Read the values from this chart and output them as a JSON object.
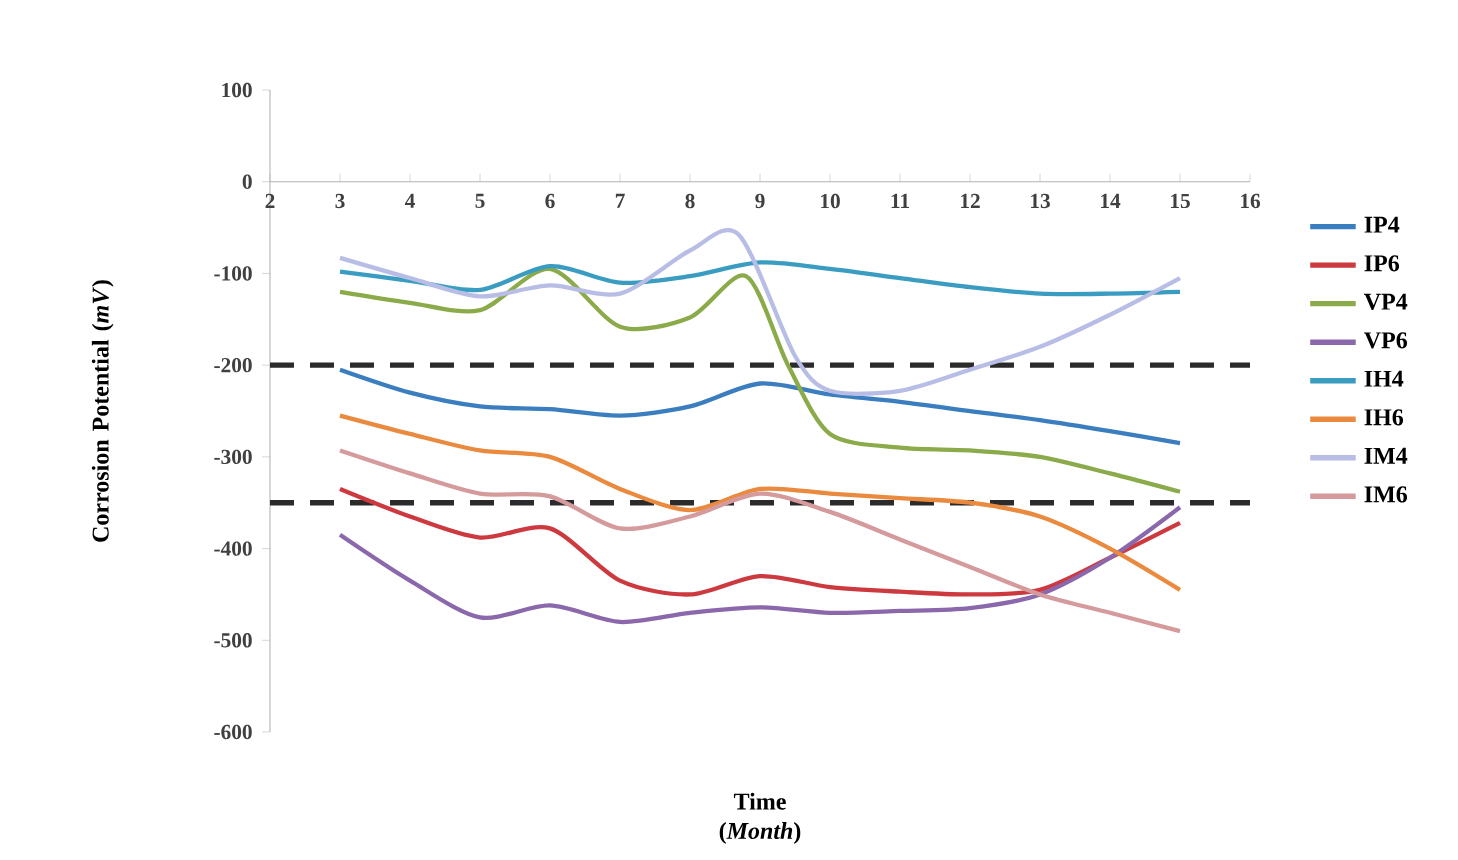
{
  "chart_data": {
    "type": "line",
    "xlabel": "Time (*Month*)",
    "ylabel": "Corrosion Potential (*mV*)",
    "xlim": [
      2,
      16
    ],
    "ylim": [
      -600,
      100
    ],
    "xticks": [
      2,
      3,
      4,
      5,
      6,
      7,
      8,
      9,
      10,
      11,
      12,
      13,
      14,
      15,
      16
    ],
    "yticks": [
      -600,
      -500,
      -400,
      -300,
      -200,
      -100,
      0,
      100
    ],
    "legend": "right",
    "marker": "none",
    "line_style": "solid",
    "ref_lines": [
      {
        "axis": "y",
        "value": -200,
        "color": "#2b2b2b",
        "line_style": "dashed"
      },
      {
        "axis": "y",
        "value": -350,
        "color": "#2b2b2b",
        "line_style": "dashed"
      }
    ],
    "series": [
      {
        "name": "IP4",
        "color": "#3a7ebf",
        "x": [
          3,
          4,
          5,
          6,
          7,
          8,
          9,
          10,
          11,
          12,
          13,
          14,
          15
        ],
        "values": [
          -205,
          -230,
          -245,
          -248,
          -255,
          -245,
          -220,
          -232,
          -240,
          -250,
          -260,
          -272,
          -285
        ]
      },
      {
        "name": "IP6",
        "color": "#cc3a3f",
        "x": [
          3,
          4,
          5,
          6,
          7,
          8,
          9,
          10,
          11,
          12,
          13,
          14,
          15
        ],
        "values": [
          -335,
          -365,
          -388,
          -378,
          -435,
          -450,
          -430,
          -442,
          -447,
          -450,
          -445,
          -410,
          -372
        ]
      },
      {
        "name": "VP4",
        "color": "#8bab4a",
        "x": [
          3,
          4,
          5,
          6,
          7,
          8,
          8.8,
          9.4,
          10,
          11,
          12,
          13,
          14,
          15
        ],
        "values": [
          -120,
          -132,
          -140,
          -95,
          -158,
          -148,
          -103,
          -200,
          -275,
          -290,
          -293,
          -300,
          -318,
          -338
        ]
      },
      {
        "name": "VP6",
        "color": "#8a68ab",
        "x": [
          3,
          4,
          5,
          6,
          7,
          8,
          9,
          10,
          11,
          12,
          13,
          14,
          15
        ],
        "values": [
          -385,
          -435,
          -475,
          -462,
          -480,
          -470,
          -464,
          -470,
          -468,
          -465,
          -450,
          -410,
          -355
        ]
      },
      {
        "name": "IH4",
        "color": "#3a9cc0",
        "x": [
          3,
          4,
          5,
          6,
          7,
          8,
          9,
          10,
          11,
          12,
          13,
          14,
          15
        ],
        "values": [
          -98,
          -108,
          -118,
          -92,
          -110,
          -103,
          -88,
          -95,
          -105,
          -115,
          -122,
          -122,
          -120
        ]
      },
      {
        "name": "IH6",
        "color": "#ea8a3e",
        "x": [
          3,
          4,
          5,
          6,
          7,
          8,
          9,
          10,
          11,
          12,
          13,
          14,
          15
        ],
        "values": [
          -255,
          -275,
          -293,
          -300,
          -335,
          -358,
          -335,
          -340,
          -345,
          -350,
          -365,
          -400,
          -445
        ]
      },
      {
        "name": "IM4",
        "color": "#b8bde6",
        "x": [
          3,
          4,
          5,
          6,
          7,
          8,
          8.7,
          9.5,
          10,
          11,
          12,
          13,
          14,
          15
        ],
        "values": [
          -83,
          -105,
          -125,
          -113,
          -122,
          -75,
          -58,
          -190,
          -228,
          -228,
          -205,
          -180,
          -145,
          -105
        ]
      },
      {
        "name": "IM6",
        "color": "#d59a9b",
        "x": [
          3,
          4,
          5,
          6,
          7,
          8,
          9,
          10,
          11,
          12,
          13,
          14,
          15
        ],
        "values": [
          -293,
          -318,
          -340,
          -343,
          -378,
          -365,
          -340,
          -360,
          -390,
          -420,
          -450,
          -470,
          -490
        ]
      }
    ]
  }
}
